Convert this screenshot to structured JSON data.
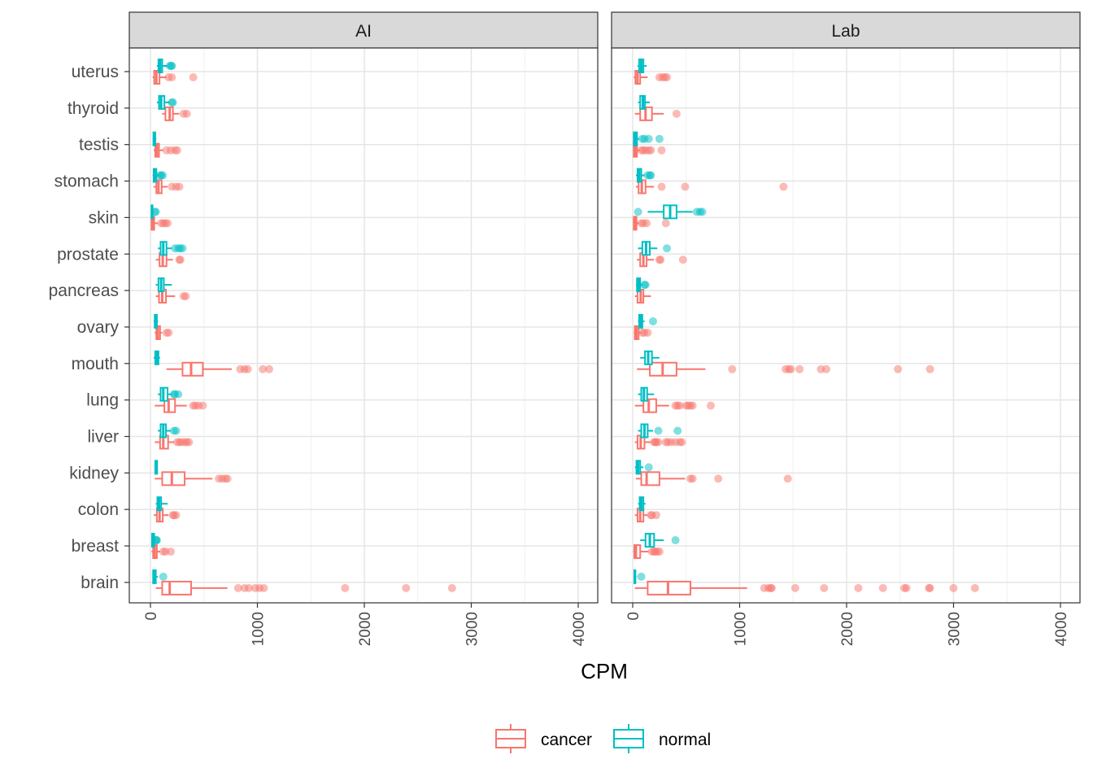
{
  "chart_data": {
    "type": "boxplot",
    "xlabel": "CPM",
    "ylabel": "",
    "xlim": [
      0,
      4000
    ],
    "x_ticks": [
      "0",
      "1000",
      "2000",
      "3000",
      "4000"
    ],
    "grid": true,
    "legend_position": "bottom",
    "categories": [
      "uterus",
      "thyroid",
      "testis",
      "stomach",
      "skin",
      "prostate",
      "pancreas",
      "ovary",
      "mouth",
      "lung",
      "liver",
      "kidney",
      "colon",
      "breast",
      "brain"
    ],
    "legend": [
      {
        "label": "cancer",
        "color": "#F8766D"
      },
      {
        "label": "normal",
        "color": "#00BFC4"
      }
    ],
    "panels": [
      {
        "title": "AI",
        "boxes": [
          {
            "tissue": "uterus",
            "group": "cancer",
            "min": 20,
            "q1": 35,
            "median": 55,
            "q3": 85,
            "max": 150,
            "outliers": [
              170,
              200,
              400
            ]
          },
          {
            "tissue": "uterus",
            "group": "normal",
            "min": 60,
            "q1": 75,
            "median": 90,
            "q3": 110,
            "max": 160,
            "outliers": [
              180,
              195,
              200
            ]
          },
          {
            "tissue": "thyroid",
            "group": "cancer",
            "min": 110,
            "q1": 140,
            "median": 180,
            "q3": 210,
            "max": 270,
            "outliers": [
              310,
              340
            ]
          },
          {
            "tissue": "thyroid",
            "group": "normal",
            "min": 60,
            "q1": 80,
            "median": 100,
            "q3": 130,
            "max": 180,
            "outliers": [
              200,
              210
            ]
          },
          {
            "tissue": "testis",
            "group": "cancer",
            "min": 30,
            "q1": 45,
            "median": 60,
            "q3": 80,
            "max": 120,
            "outliers": [
              150,
              190,
              230,
              250
            ]
          },
          {
            "tissue": "testis",
            "group": "normal",
            "min": 20,
            "q1": 28,
            "median": 35,
            "q3": 45,
            "max": 55,
            "outliers": []
          },
          {
            "tissue": "stomach",
            "group": "cancer",
            "min": 30,
            "q1": 55,
            "median": 75,
            "q3": 105,
            "max": 160,
            "outliers": [
              200,
              240,
              270
            ]
          },
          {
            "tissue": "stomach",
            "group": "normal",
            "min": 20,
            "q1": 30,
            "median": 40,
            "q3": 55,
            "max": 80,
            "outliers": [
              90,
              100,
              115
            ]
          },
          {
            "tissue": "skin",
            "group": "cancer",
            "min": 5,
            "q1": 10,
            "median": 20,
            "q3": 35,
            "max": 70,
            "outliers": [
              100,
              120,
              140,
              160
            ]
          },
          {
            "tissue": "skin",
            "group": "normal",
            "min": 5,
            "q1": 10,
            "median": 15,
            "q3": 20,
            "max": 30,
            "outliers": [
              40,
              50
            ]
          },
          {
            "tissue": "prostate",
            "group": "cancer",
            "min": 50,
            "q1": 85,
            "median": 115,
            "q3": 150,
            "max": 210,
            "outliers": [
              270,
              280
            ]
          },
          {
            "tissue": "prostate",
            "group": "normal",
            "min": 70,
            "q1": 95,
            "median": 120,
            "q3": 150,
            "max": 200,
            "outliers": [
              230,
              260,
              280,
              300
            ]
          },
          {
            "tissue": "pancreas",
            "group": "cancer",
            "min": 50,
            "q1": 80,
            "median": 110,
            "q3": 145,
            "max": 230,
            "outliers": [
              310,
              330
            ]
          },
          {
            "tissue": "pancreas",
            "group": "normal",
            "min": 50,
            "q1": 75,
            "median": 100,
            "q3": 125,
            "max": 200,
            "outliers": []
          },
          {
            "tissue": "ovary",
            "group": "cancer",
            "min": 40,
            "q1": 55,
            "median": 70,
            "q3": 90,
            "max": 110,
            "outliers": [
              150,
              170
            ]
          },
          {
            "tissue": "ovary",
            "group": "normal",
            "min": 30,
            "q1": 40,
            "median": 50,
            "q3": 60,
            "max": 70,
            "outliers": []
          },
          {
            "tissue": "mouth",
            "group": "cancer",
            "min": 150,
            "q1": 300,
            "median": 380,
            "q3": 490,
            "max": 760,
            "outliers": [
              840,
              880,
              910,
              1050,
              1110
            ]
          },
          {
            "tissue": "mouth",
            "group": "normal",
            "min": 30,
            "q1": 45,
            "median": 60,
            "q3": 75,
            "max": 90,
            "outliers": []
          },
          {
            "tissue": "lung",
            "group": "cancer",
            "min": 40,
            "q1": 130,
            "median": 170,
            "q3": 230,
            "max": 340,
            "outliers": [
              400,
              420,
              450,
              490
            ]
          },
          {
            "tissue": "lung",
            "group": "normal",
            "min": 70,
            "q1": 95,
            "median": 120,
            "q3": 160,
            "max": 200,
            "outliers": [
              220,
              230,
              260
            ]
          },
          {
            "tissue": "liver",
            "group": "cancer",
            "min": 40,
            "q1": 90,
            "median": 120,
            "q3": 165,
            "max": 220,
            "outliers": [
              250,
              270,
              290,
              320,
              340,
              360
            ]
          },
          {
            "tissue": "liver",
            "group": "normal",
            "min": 70,
            "q1": 95,
            "median": 120,
            "q3": 145,
            "max": 190,
            "outliers": [
              220,
              240
            ]
          },
          {
            "tissue": "kidney",
            "group": "cancer",
            "min": 40,
            "q1": 110,
            "median": 200,
            "q3": 320,
            "max": 580,
            "outliers": [
              640,
              670,
              700,
              720
            ]
          },
          {
            "tissue": "kidney",
            "group": "normal",
            "min": 40,
            "q1": 45,
            "median": 55,
            "q3": 62,
            "max": 70,
            "outliers": []
          },
          {
            "tissue": "colon",
            "group": "cancer",
            "min": 30,
            "q1": 60,
            "median": 85,
            "q3": 115,
            "max": 170,
            "outliers": [
              210,
              220,
              240
            ]
          },
          {
            "tissue": "colon",
            "group": "normal",
            "min": 50,
            "q1": 65,
            "median": 80,
            "q3": 100,
            "max": 160,
            "outliers": []
          },
          {
            "tissue": "breast",
            "group": "cancer",
            "min": 10,
            "q1": 25,
            "median": 40,
            "q3": 60,
            "max": 90,
            "outliers": [
              120,
              140,
              190
            ]
          },
          {
            "tissue": "breast",
            "group": "normal",
            "min": 10,
            "q1": 15,
            "median": 25,
            "q3": 35,
            "max": 45,
            "outliers": [
              50,
              55,
              60
            ]
          },
          {
            "tissue": "brain",
            "group": "cancer",
            "min": 50,
            "q1": 110,
            "median": 180,
            "q3": 380,
            "max": 720,
            "outliers": [
              820,
              880,
              920,
              980,
              1020,
              1060,
              1820,
              2390,
              2820
            ]
          },
          {
            "tissue": "brain",
            "group": "normal",
            "min": 20,
            "q1": 25,
            "median": 35,
            "q3": 50,
            "max": 70,
            "outliers": [
              120
            ]
          }
        ]
      },
      {
        "title": "Lab",
        "boxes": [
          {
            "tissue": "uterus",
            "group": "cancer",
            "min": 10,
            "q1": 25,
            "median": 45,
            "q3": 70,
            "max": 140,
            "outliers": [
              250,
              280,
              300,
              320
            ]
          },
          {
            "tissue": "uterus",
            "group": "normal",
            "min": 45,
            "q1": 60,
            "median": 80,
            "q3": 100,
            "max": 130,
            "outliers": []
          },
          {
            "tissue": "thyroid",
            "group": "cancer",
            "min": 20,
            "q1": 70,
            "median": 120,
            "q3": 180,
            "max": 290,
            "outliers": [
              410
            ]
          },
          {
            "tissue": "thyroid",
            "group": "normal",
            "min": 50,
            "q1": 70,
            "median": 95,
            "q3": 115,
            "max": 160,
            "outliers": []
          },
          {
            "tissue": "testis",
            "group": "cancer",
            "min": 5,
            "q1": 10,
            "median": 25,
            "q3": 40,
            "max": 70,
            "outliers": [
              80,
              100,
              120,
              150,
              170,
              270
            ]
          },
          {
            "tissue": "testis",
            "group": "normal",
            "min": 5,
            "q1": 10,
            "median": 25,
            "q3": 40,
            "max": 60,
            "outliers": [
              90,
              110,
              150,
              250
            ]
          },
          {
            "tissue": "stomach",
            "group": "cancer",
            "min": 30,
            "q1": 55,
            "median": 85,
            "q3": 120,
            "max": 200,
            "outliers": [
              270,
              490,
              1410
            ]
          },
          {
            "tissue": "stomach",
            "group": "normal",
            "min": 30,
            "q1": 45,
            "median": 60,
            "q3": 80,
            "max": 110,
            "outliers": [
              140,
              160,
              170
            ]
          },
          {
            "tissue": "skin",
            "group": "cancer",
            "min": 5,
            "q1": 10,
            "median": 20,
            "q3": 35,
            "max": 60,
            "outliers": [
              80,
              100,
              130,
              310
            ]
          },
          {
            "tissue": "skin",
            "group": "normal",
            "min": 140,
            "q1": 290,
            "median": 350,
            "q3": 410,
            "max": 560,
            "outliers": [
              50,
              600,
              630,
              650
            ]
          },
          {
            "tissue": "prostate",
            "group": "cancer",
            "min": 40,
            "q1": 70,
            "median": 100,
            "q3": 130,
            "max": 200,
            "outliers": [
              250,
              260,
              470
            ]
          },
          {
            "tissue": "prostate",
            "group": "normal",
            "min": 50,
            "q1": 90,
            "median": 125,
            "q3": 160,
            "max": 230,
            "outliers": [
              320
            ]
          },
          {
            "tissue": "pancreas",
            "group": "cancer",
            "min": 20,
            "q1": 45,
            "median": 75,
            "q3": 100,
            "max": 170,
            "outliers": []
          },
          {
            "tissue": "pancreas",
            "group": "normal",
            "min": 30,
            "q1": 40,
            "median": 55,
            "q3": 70,
            "max": 90,
            "outliers": [
              110,
              120
            ]
          },
          {
            "tissue": "ovary",
            "group": "cancer",
            "min": 10,
            "q1": 20,
            "median": 35,
            "q3": 55,
            "max": 80,
            "outliers": [
              90,
              110,
              140
            ]
          },
          {
            "tissue": "ovary",
            "group": "normal",
            "min": 50,
            "q1": 60,
            "median": 75,
            "q3": 90,
            "max": 110,
            "outliers": [
              190
            ]
          },
          {
            "tissue": "mouth",
            "group": "cancer",
            "min": 40,
            "q1": 160,
            "median": 280,
            "q3": 410,
            "max": 680,
            "outliers": [
              930,
              1430,
              1460,
              1480,
              1560,
              1760,
              1810,
              2480,
              2780
            ]
          },
          {
            "tissue": "mouth",
            "group": "normal",
            "min": 70,
            "q1": 115,
            "median": 145,
            "q3": 180,
            "max": 250,
            "outliers": []
          },
          {
            "tissue": "lung",
            "group": "cancer",
            "min": 20,
            "q1": 100,
            "median": 150,
            "q3": 220,
            "max": 340,
            "outliers": [
              400,
              420,
              440,
              500,
              520,
              540,
              560,
              730
            ]
          },
          {
            "tissue": "lung",
            "group": "normal",
            "min": 50,
            "q1": 80,
            "median": 105,
            "q3": 135,
            "max": 200,
            "outliers": []
          },
          {
            "tissue": "liver",
            "group": "cancer",
            "min": 20,
            "q1": 45,
            "median": 75,
            "q3": 110,
            "max": 170,
            "outliers": [
              200,
              210,
              220,
              240,
              310,
              330,
              360,
              400,
              440,
              460
            ]
          },
          {
            "tissue": "liver",
            "group": "normal",
            "min": 50,
            "q1": 80,
            "median": 110,
            "q3": 140,
            "max": 190,
            "outliers": [
              240,
              420
            ]
          },
          {
            "tissue": "kidney",
            "group": "cancer",
            "min": 30,
            "q1": 80,
            "median": 130,
            "q3": 250,
            "max": 490,
            "outliers": [
              540,
              560,
              800,
              1450
            ]
          },
          {
            "tissue": "kidney",
            "group": "normal",
            "min": 20,
            "q1": 35,
            "median": 50,
            "q3": 70,
            "max": 100,
            "outliers": [
              150
            ]
          },
          {
            "tissue": "colon",
            "group": "cancer",
            "min": 20,
            "q1": 45,
            "median": 70,
            "q3": 100,
            "max": 140,
            "outliers": [
              170,
              180,
              220
            ]
          },
          {
            "tissue": "colon",
            "group": "normal",
            "min": 50,
            "q1": 65,
            "median": 80,
            "q3": 100,
            "max": 120,
            "outliers": []
          },
          {
            "tissue": "breast",
            "group": "cancer",
            "min": 5,
            "q1": 15,
            "median": 30,
            "q3": 70,
            "max": 150,
            "outliers": [
              180,
              200,
              210,
              230,
              250
            ]
          },
          {
            "tissue": "breast",
            "group": "normal",
            "min": 70,
            "q1": 120,
            "median": 160,
            "q3": 200,
            "max": 290,
            "outliers": [
              400
            ]
          },
          {
            "tissue": "brain",
            "group": "cancer",
            "min": 20,
            "q1": 140,
            "median": 330,
            "q3": 540,
            "max": 1070,
            "outliers": [
              1230,
              1270,
              1290,
              1300,
              1520,
              1790,
              2110,
              2340,
              2540,
              2560,
              2770,
              2780,
              3000,
              3200
            ]
          },
          {
            "tissue": "brain",
            "group": "normal",
            "min": 10,
            "q1": 15,
            "median": 20,
            "q3": 25,
            "max": 35,
            "outliers": [
              80
            ]
          }
        ]
      }
    ]
  }
}
